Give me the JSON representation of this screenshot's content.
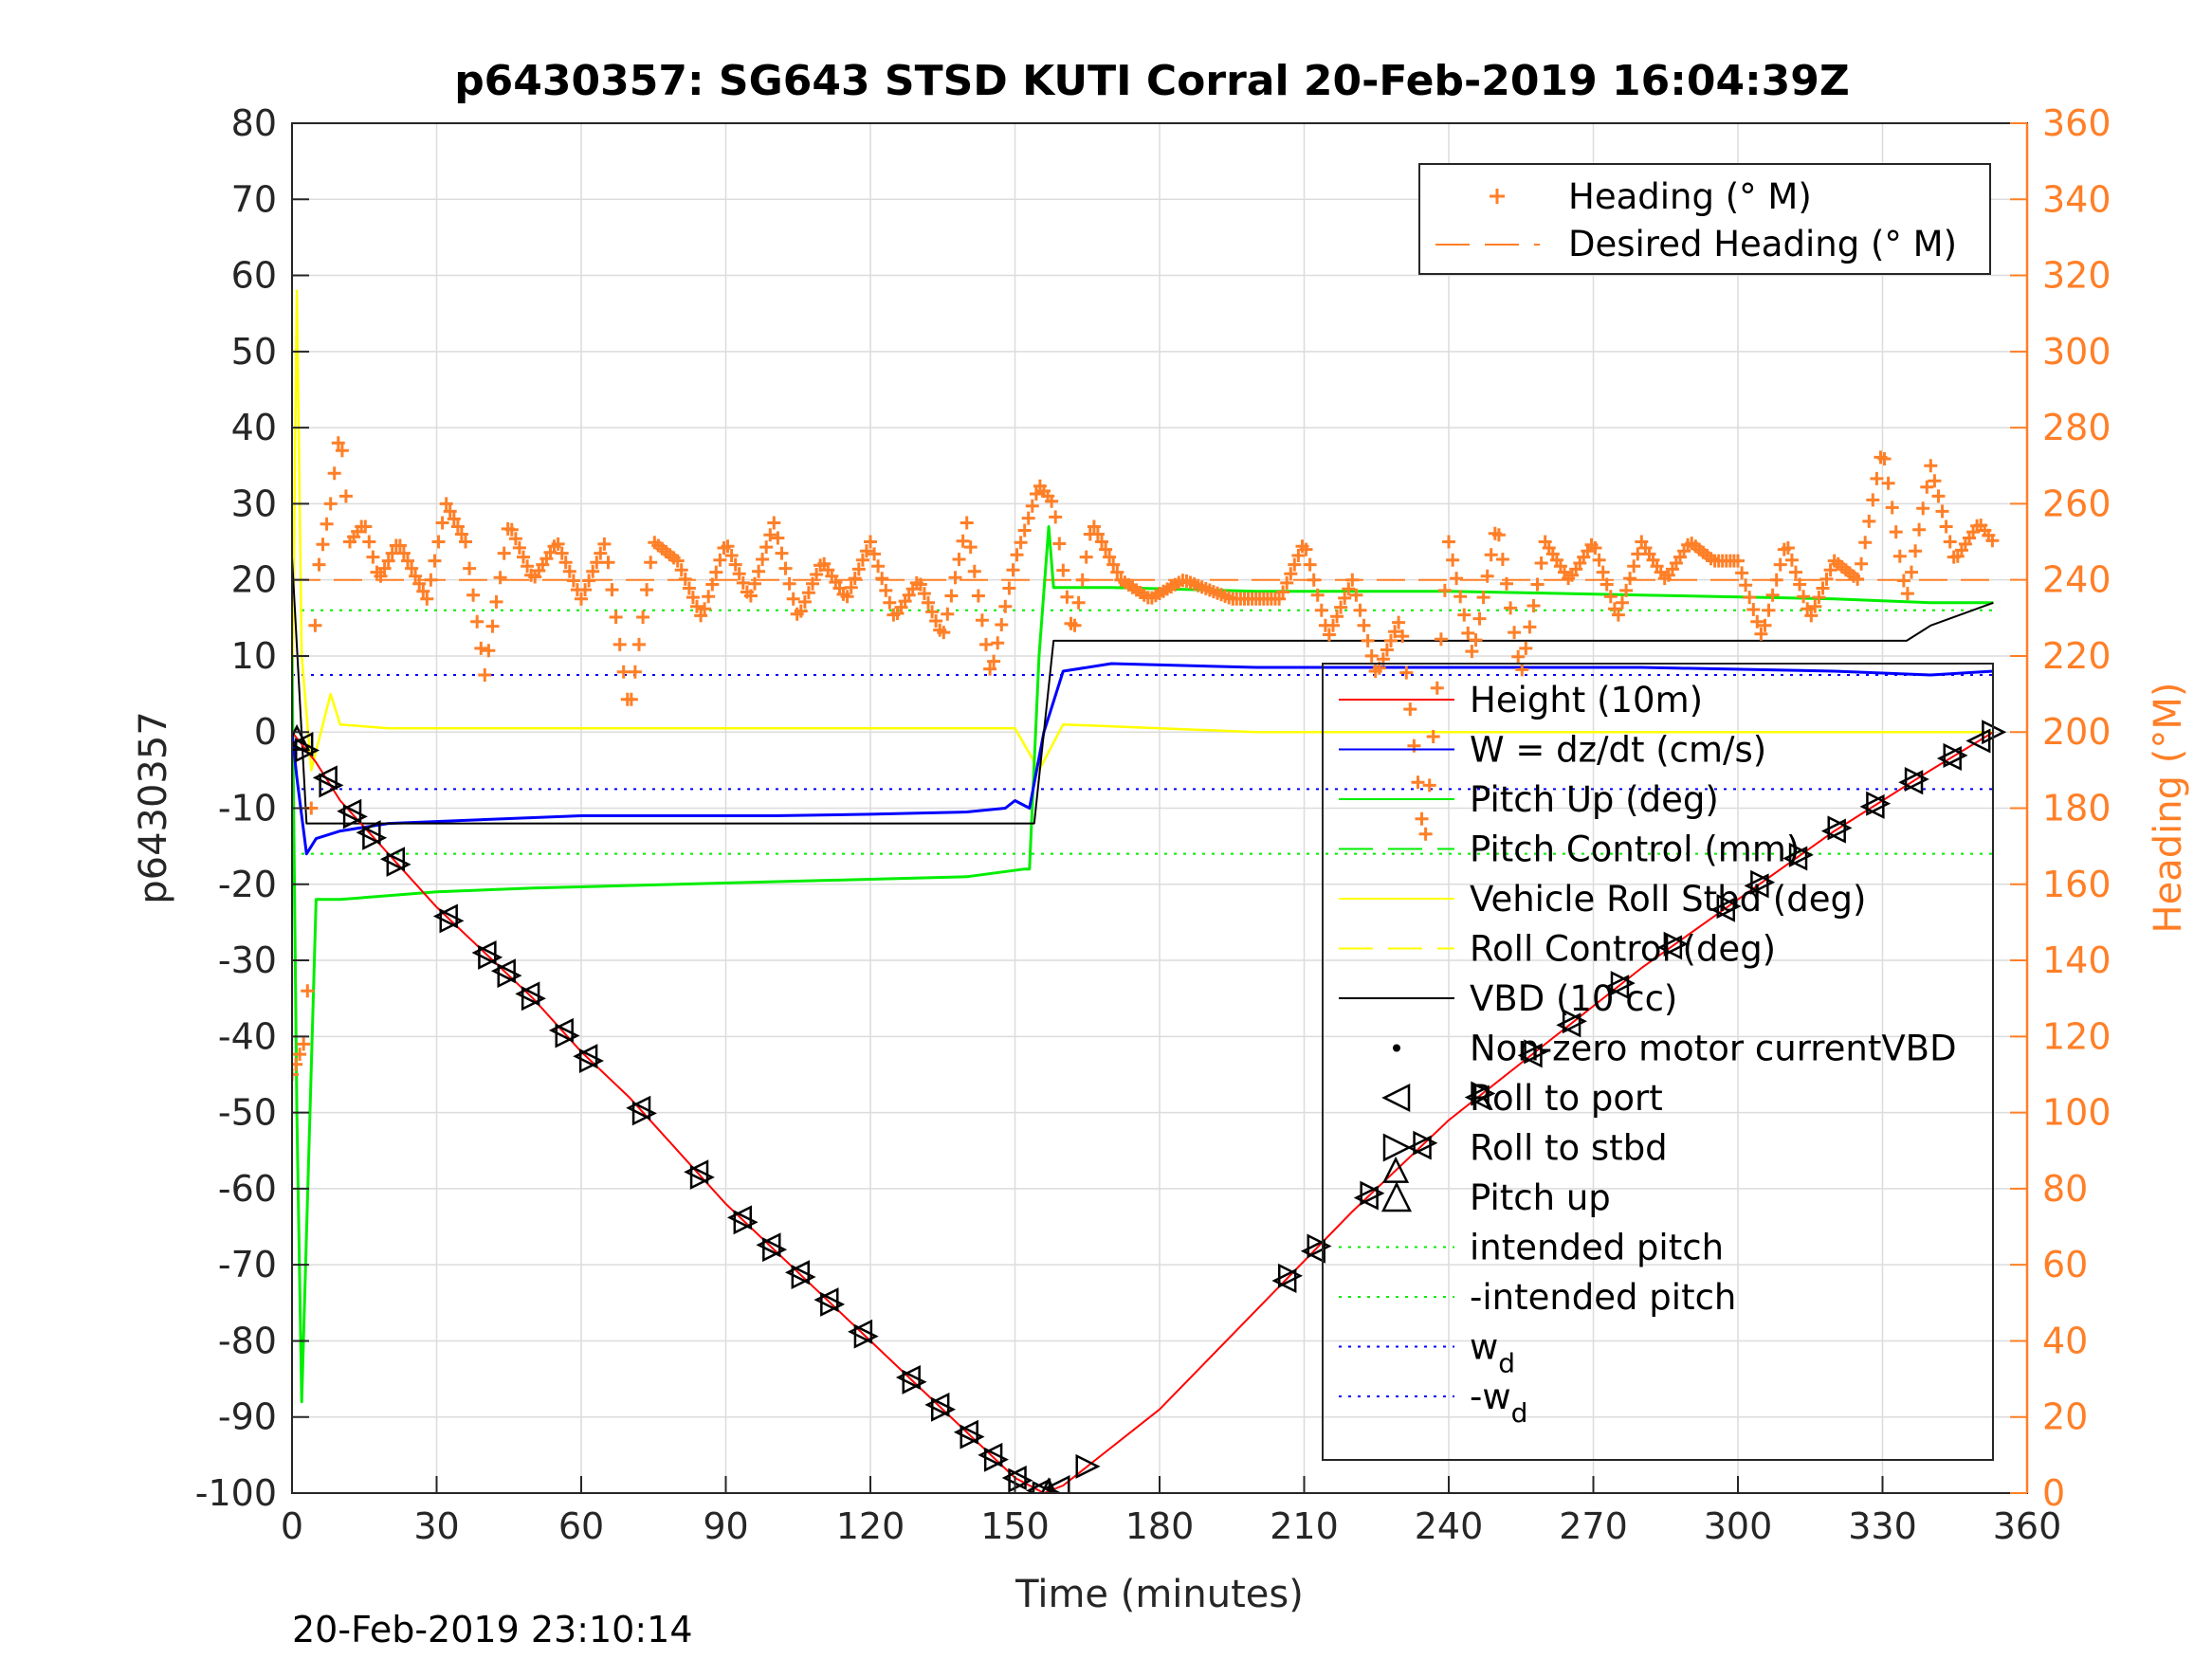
{
  "chart_data": {
    "type": "line",
    "title": "p6430357: SG643 STSD KUTI Corral 20-Feb-2019 16:04:39Z",
    "xlabel": "Time (minutes)",
    "ylabel": "p6430357",
    "ylabel_right": "Heading (°M)",
    "footer": "20-Feb-2019 23:10:14",
    "xlim": [
      0,
      360
    ],
    "ylim": [
      -100,
      80
    ],
    "ylim_right": [
      0,
      360
    ],
    "xticks": [
      0,
      30,
      60,
      90,
      120,
      150,
      180,
      210,
      240,
      270,
      300,
      330,
      360
    ],
    "yticks": [
      80,
      70,
      60,
      50,
      40,
      30,
      20,
      10,
      0,
      -10,
      -20,
      -30,
      -40,
      -50,
      -60,
      -70,
      -80,
      -90,
      -100
    ],
    "yticks_right": [
      360,
      340,
      320,
      300,
      280,
      260,
      240,
      220,
      200,
      180,
      160,
      140,
      120,
      100,
      80,
      60,
      40,
      20,
      0
    ],
    "grid": true,
    "colors": {
      "heading": "#ff7f27",
      "height": "#ff0000",
      "w": "#0000ff",
      "pitch": "#00ee00",
      "roll": "#ffff00",
      "vbd": "#000000"
    },
    "legend_right": {
      "placement": "top-right",
      "entries": [
        "Heading (° M)",
        "Desired Heading (° M)"
      ]
    },
    "legend_left": {
      "placement": "lower-right",
      "entries": [
        {
          "label": "Height (10m)",
          "style": "red-line"
        },
        {
          "label": "W = dz/dt (cm/s)",
          "style": "blue-line"
        },
        {
          "label": "Pitch Up (deg)",
          "style": "green-line"
        },
        {
          "label": "Pitch Control (mm)",
          "style": "green-dash"
        },
        {
          "label": "Vehicle Roll Stbd (deg)",
          "style": "yellow-line"
        },
        {
          "label": "Roll Control (deg)",
          "style": "yellow-dash"
        },
        {
          "label": "VBD (10 cc)",
          "style": "black-line"
        },
        {
          "label": "Non-zero motor currentVBD",
          "style": "black-dot"
        },
        {
          "label": "Roll to port",
          "style": "tri-left"
        },
        {
          "label": "Roll to stbd",
          "style": "tri-right"
        },
        {
          "label": "Pitch up",
          "style": "tri-up"
        },
        {
          "label": "intended pitch",
          "style": "green-dot"
        },
        {
          "label": "-intended pitch",
          "style": "green-dot"
        },
        {
          "label": "w",
          "sub": "d",
          "style": "blue-dot"
        },
        {
          "label": "-w",
          "sub": "d",
          "style": "blue-dot"
        }
      ]
    },
    "series": [
      {
        "name": "Height (10m)",
        "axis": "left",
        "x": [
          0,
          5,
          10,
          20,
          30,
          40,
          50,
          60,
          70,
          80,
          90,
          100,
          110,
          120,
          130,
          140,
          150,
          156,
          160,
          166,
          180,
          200,
          220,
          240,
          260,
          280,
          300,
          320,
          340,
          353
        ],
        "y": [
          0,
          -4,
          -9,
          -16,
          -23,
          -29,
          -35,
          -42,
          -48,
          -55,
          -62,
          -68,
          -74,
          -80,
          -86,
          -92,
          -98,
          -100,
          -99,
          -96,
          -89,
          -76,
          -63,
          -51,
          -41,
          -31,
          -22,
          -13,
          -5,
          0
        ]
      },
      {
        "name": "W = dz/dt (cm/s)",
        "axis": "left",
        "x": [
          0,
          1,
          3,
          5,
          10,
          20,
          40,
          60,
          80,
          100,
          120,
          140,
          148,
          150,
          153,
          156,
          160,
          170,
          200,
          240,
          280,
          320,
          340,
          353
        ],
        "y": [
          0,
          -6,
          -16,
          -14,
          -13,
          -12,
          -11.5,
          -11,
          -11,
          -11,
          -10.8,
          -10.5,
          -10,
          -9,
          -10,
          0,
          8,
          9,
          8.5,
          8.5,
          8.5,
          8,
          7.5,
          8
        ]
      },
      {
        "name": "Pitch Up (deg)",
        "axis": "left",
        "x": [
          0,
          1,
          2,
          5,
          10,
          30,
          50,
          80,
          110,
          140,
          152,
          153,
          155,
          157,
          158,
          170,
          200,
          240,
          280,
          320,
          340,
          353
        ],
        "y": [
          10,
          -50,
          -88,
          -22,
          -22,
          -21,
          -20.5,
          -20,
          -19.5,
          -19,
          -18,
          -18,
          10,
          27,
          19,
          19,
          18.5,
          18.5,
          18,
          17.5,
          17,
          17
        ]
      },
      {
        "name": "Vehicle Roll Stbd (deg)",
        "axis": "left",
        "x": [
          0,
          1,
          2,
          4,
          6,
          8,
          10,
          20,
          40,
          60,
          80,
          100,
          120,
          140,
          150,
          155,
          160,
          180,
          200,
          240,
          280,
          320,
          353
        ],
        "y": [
          0,
          58,
          10,
          -5,
          0,
          5,
          1,
          0.5,
          0.5,
          0.5,
          0.5,
          0.5,
          0.5,
          0.5,
          0.5,
          -5,
          1,
          0.5,
          0,
          0,
          0,
          0,
          0
        ]
      },
      {
        "name": "VBD (10 cc)",
        "axis": "left",
        "x": [
          0,
          3,
          150,
          154,
          158,
          335,
          340,
          353
        ],
        "y": [
          23,
          -12,
          -12,
          -12,
          12,
          12,
          14,
          17
        ]
      },
      {
        "name": "Heading (° M)",
        "axis": "right",
        "x": [
          0,
          3,
          5,
          8,
          10,
          12,
          15,
          18,
          22,
          28,
          32,
          36,
          40,
          45,
          50,
          55,
          60,
          65,
          70,
          75,
          80,
          85,
          90,
          95,
          100,
          105,
          110,
          115,
          120,
          125,
          130,
          135,
          140,
          145,
          150,
          155,
          158,
          162,
          166,
          172,
          178,
          185,
          195,
          205,
          210,
          215,
          220,
          225,
          230,
          235,
          240,
          245,
          250,
          255,
          260,
          265,
          270,
          275,
          280,
          285,
          290,
          295,
          300,
          305,
          310,
          315,
          320,
          325,
          330,
          335,
          340,
          345,
          350,
          353
        ],
        "y": [
          110,
          120,
          240,
          260,
          280,
          250,
          255,
          240,
          250,
          235,
          260,
          250,
          215,
          255,
          240,
          250,
          235,
          250,
          205,
          250,
          245,
          230,
          250,
          235,
          255,
          230,
          245,
          235,
          250,
          230,
          240,
          225,
          255,
          215,
          245,
          265,
          260,
          225,
          255,
          240,
          235,
          240,
          235,
          235,
          250,
          225,
          240,
          215,
          230,
          170,
          250,
          220,
          255,
          215,
          250,
          240,
          250,
          230,
          250,
          240,
          250,
          245,
          245,
          225,
          250,
          230,
          245,
          240,
          275,
          235,
          270,
          245,
          255,
          250
        ]
      },
      {
        "name": "Desired Heading (° M)",
        "axis": "right",
        "x": [
          0,
          353
        ],
        "y": [
          240,
          240
        ]
      }
    ],
    "reference_lines": [
      {
        "name": "intended pitch",
        "value": 16,
        "axis": "left"
      },
      {
        "name": "-intended pitch",
        "value": -16,
        "axis": "left"
      },
      {
        "name": "w_d",
        "value": 7.5,
        "axis": "left"
      },
      {
        "name": "-w_d",
        "value": -7.5,
        "axis": "left"
      }
    ],
    "markers": {
      "roll_to_port_x": [
        2,
        7,
        12,
        16,
        21,
        32,
        40,
        44,
        49,
        56,
        61,
        72,
        84,
        93,
        99,
        105,
        111,
        118,
        128,
        134,
        140,
        145,
        150,
        155,
        159,
        206,
        212,
        223,
        234,
        246,
        257,
        265,
        275,
        286,
        297,
        304,
        312,
        320,
        328,
        336,
        344,
        350
      ],
      "roll_to_stbd_x": [
        3,
        8,
        13,
        17,
        22,
        33,
        41,
        45,
        50,
        57,
        62,
        73,
        85,
        94,
        100,
        106,
        112,
        119,
        129,
        135,
        141,
        146,
        151,
        156,
        165,
        207,
        213,
        224,
        235,
        247,
        258,
        266,
        276,
        287,
        298,
        305,
        313,
        321,
        329,
        337,
        345,
        353
      ],
      "pitch_up_x": [
        1,
        157,
        229
      ]
    }
  }
}
